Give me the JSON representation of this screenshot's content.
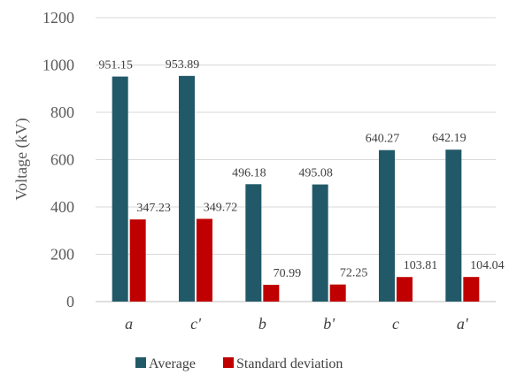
{
  "chart_data": {
    "type": "bar",
    "title": "",
    "xlabel": "",
    "ylabel": "Voltage (kV)",
    "ylim": [
      0,
      1200
    ],
    "yticks": [
      0,
      200,
      400,
      600,
      800,
      1000,
      1200
    ],
    "grid": true,
    "legend_position": "bottom",
    "categories": [
      "a",
      "c'",
      "b",
      "b'",
      "c",
      "a'"
    ],
    "series": [
      {
        "name": "Average",
        "color": "#215968",
        "values": [
          951.15,
          953.89,
          496.18,
          495.08,
          640.27,
          642.19
        ],
        "labels": [
          "951.15",
          "953.89",
          "496.18",
          "495.08",
          "640.27",
          "642.19"
        ]
      },
      {
        "name": "Standard deviation",
        "color": "#c00000",
        "values": [
          347.23,
          349.72,
          70.99,
          72.25,
          103.81,
          104.04
        ],
        "labels": [
          "347.23",
          "349.72",
          "70.99",
          "72.25",
          "103.81",
          "104.04"
        ]
      }
    ]
  }
}
